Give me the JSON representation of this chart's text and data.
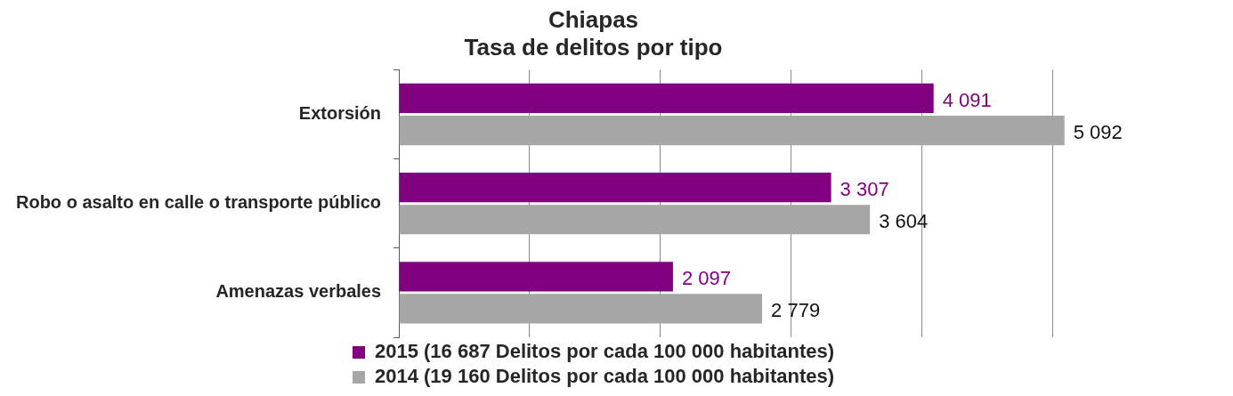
{
  "chart_data": {
    "type": "bar",
    "orientation": "horizontal",
    "title": "Chiapas\nTasa de delitos por tipo",
    "categories": [
      "Extorsión",
      "Robo o asalto en calle o transporte público",
      "Amenazas verbales"
    ],
    "series": [
      {
        "name": "2015 (16 687 Delitos por cada 100 000 habitantes)",
        "color": "#800080",
        "values": [
          4091,
          3307,
          2097
        ],
        "value_labels": [
          "4 091",
          "3 307",
          "2 097"
        ]
      },
      {
        "name": "2014 (19 160 Delitos por cada 100 000 habitantes)",
        "color": "#a6a6a6",
        "values": [
          5092,
          3604,
          2779
        ],
        "value_labels": [
          "5 092",
          "3 604",
          "2 779"
        ]
      }
    ],
    "xticks": [
      {
        "value": 0,
        "label": null
      },
      {
        "value": 1000,
        "label": null
      },
      {
        "value": 2000,
        "label": null
      },
      {
        "value": 3000,
        "label": null
      },
      {
        "value": 4000,
        "label": null
      },
      {
        "value": 5000,
        "label": null
      }
    ],
    "grid": "x",
    "legend": "bottom",
    "tick_labels": "y"
  }
}
